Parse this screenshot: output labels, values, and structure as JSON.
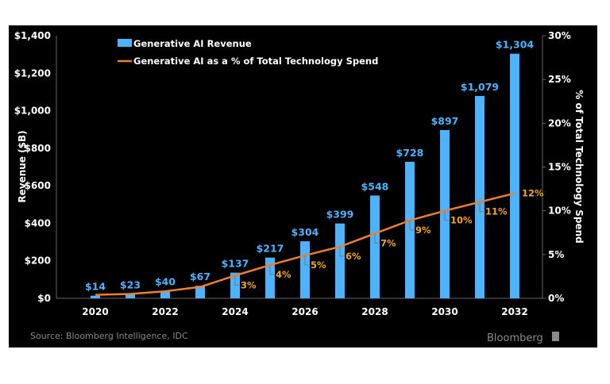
{
  "chart_data": {
    "type": "bar+line",
    "categories": [
      "2020",
      "2021",
      "2022",
      "2023",
      "2024",
      "2025",
      "2026",
      "2027",
      "2028",
      "2029",
      "2030",
      "2031",
      "2032"
    ],
    "x_tick_labels": [
      "2020",
      "2022",
      "2024",
      "2026",
      "2028",
      "2030",
      "2032"
    ],
    "series": [
      {
        "name": "Generative AI Revenue",
        "type": "bar",
        "axis": "left",
        "color": "#4db3ff",
        "values": [
          14,
          23,
          40,
          67,
          137,
          217,
          304,
          399,
          548,
          728,
          897,
          1079,
          1304
        ],
        "labels": [
          "$14",
          "$23",
          "$40",
          "$67",
          "$137",
          "$217",
          "$304",
          "$399",
          "$548",
          "$728",
          "$897",
          "$1,079",
          "$1,304"
        ]
      },
      {
        "name": "Generative AI as a % of Total Technology Spend",
        "type": "line",
        "axis": "right",
        "color": "#f07f2a",
        "values": [
          0.4,
          0.5,
          0.8,
          1.3,
          2.6,
          3.8,
          4.9,
          5.9,
          7.4,
          8.9,
          10.0,
          11.0,
          12.0
        ],
        "labels": [
          null,
          null,
          null,
          null,
          "3%",
          "4%",
          "5%",
          "6%",
          "7%",
          "9%",
          "10%",
          "11%",
          "12%"
        ],
        "label_color": "#f5a623"
      }
    ],
    "ylabel": "Revenue ($B)",
    "y2label": "% of Total Technology Spend",
    "ylim": [
      0,
      1400
    ],
    "y2lim": [
      0,
      30
    ],
    "y_tick_labels": [
      "$0",
      "$200",
      "$400",
      "$600",
      "$800",
      "$1,000",
      "$1,200",
      "$1,400"
    ],
    "y_ticks": [
      0,
      200,
      400,
      600,
      800,
      1000,
      1200,
      1400
    ],
    "y2_tick_labels": [
      "0%",
      "5%",
      "10%",
      "15%",
      "20%",
      "25%",
      "30%"
    ],
    "y2_ticks": [
      0,
      5,
      10,
      15,
      20,
      25,
      30
    ],
    "grid": false,
    "legend_placement": "top-left",
    "background": "#000000"
  },
  "footer": {
    "source": "Source: Bloomberg Intelligence, IDC",
    "logo": "Bloomberg"
  }
}
